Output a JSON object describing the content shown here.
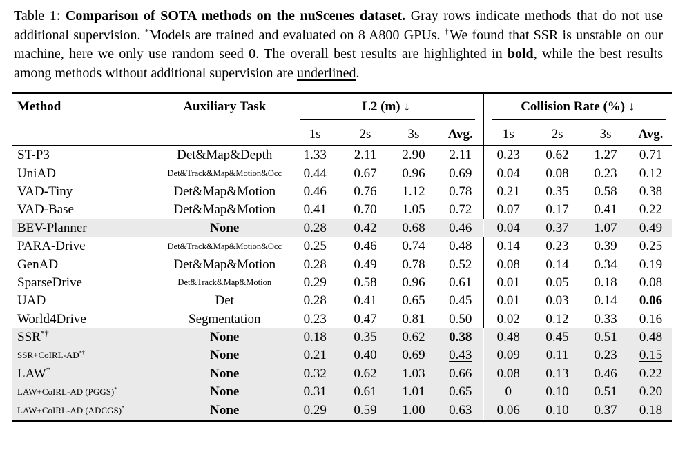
{
  "caption": {
    "segments": [
      {
        "t": "Table 1: "
      },
      {
        "t": "Comparison of SOTA methods on the nuScenes dataset.",
        "b": true
      },
      {
        "t": " Gray rows indicate methods that do not use additional supervision. "
      },
      {
        "t": "*",
        "sup": true
      },
      {
        "t": "Models are trained and evaluated on 8 A800 GPUs. "
      },
      {
        "t": "†",
        "sup": true
      },
      {
        "t": "We found that SSR is unstable on our machine, here we only use random seed 0. The overall best results are highlighted in "
      },
      {
        "t": "bold",
        "b": true
      },
      {
        "t": ", while the best results among methods without additional supervision are "
      },
      {
        "t": "underlined",
        "u": true
      },
      {
        "t": "."
      }
    ]
  },
  "table": {
    "headers": {
      "method": "Method",
      "aux": "Auxiliary Task",
      "group1_label": "L2 (m)",
      "group2_label": "Collision Rate (%)",
      "arrow": "↓",
      "sub": [
        "1s",
        "2s",
        "3s",
        "Avg.",
        "1s",
        "2s",
        "3s",
        "Avg."
      ]
    },
    "rows": [
      {
        "method": "ST-P3",
        "sup": "",
        "small": false,
        "aux": "Det&Map&Depth",
        "aux_small": false,
        "aux_bold": false,
        "gray": false,
        "values": [
          "1.33",
          "2.11",
          "2.90",
          "2.11",
          "0.23",
          "0.62",
          "1.27",
          "0.71"
        ],
        "styles": [
          "",
          "",
          "",
          "",
          "",
          "",
          "",
          ""
        ]
      },
      {
        "method": "UniAD",
        "sup": "",
        "small": false,
        "aux": "Det&Track&Map&Motion&Occ",
        "aux_small": true,
        "aux_bold": false,
        "gray": false,
        "values": [
          "0.44",
          "0.67",
          "0.96",
          "0.69",
          "0.04",
          "0.08",
          "0.23",
          "0.12"
        ],
        "styles": [
          "",
          "",
          "",
          "",
          "",
          "",
          "",
          ""
        ]
      },
      {
        "method": "VAD-Tiny",
        "sup": "",
        "small": false,
        "aux": "Det&Map&Motion",
        "aux_small": false,
        "aux_bold": false,
        "gray": false,
        "values": [
          "0.46",
          "0.76",
          "1.12",
          "0.78",
          "0.21",
          "0.35",
          "0.58",
          "0.38"
        ],
        "styles": [
          "",
          "",
          "",
          "",
          "",
          "",
          "",
          ""
        ]
      },
      {
        "method": "VAD-Base",
        "sup": "",
        "small": false,
        "aux": "Det&Map&Motion",
        "aux_small": false,
        "aux_bold": false,
        "gray": false,
        "values": [
          "0.41",
          "0.70",
          "1.05",
          "0.72",
          "0.07",
          "0.17",
          "0.41",
          "0.22"
        ],
        "styles": [
          "",
          "",
          "",
          "",
          "",
          "",
          "",
          ""
        ]
      },
      {
        "method": "BEV-Planner",
        "sup": "",
        "small": false,
        "aux": "None",
        "aux_small": false,
        "aux_bold": true,
        "gray": true,
        "values": [
          "0.28",
          "0.42",
          "0.68",
          "0.46",
          "0.04",
          "0.37",
          "1.07",
          "0.49"
        ],
        "styles": [
          "",
          "",
          "",
          "",
          "",
          "",
          "",
          ""
        ]
      },
      {
        "method": "PARA-Drive",
        "sup": "",
        "small": false,
        "aux": "Det&Track&Map&Motion&Occ",
        "aux_small": true,
        "aux_bold": false,
        "gray": false,
        "values": [
          "0.25",
          "0.46",
          "0.74",
          "0.48",
          "0.14",
          "0.23",
          "0.39",
          "0.25"
        ],
        "styles": [
          "",
          "",
          "",
          "",
          "",
          "",
          "",
          ""
        ]
      },
      {
        "method": "GenAD",
        "sup": "",
        "small": false,
        "aux": "Det&Map&Motion",
        "aux_small": false,
        "aux_bold": false,
        "gray": false,
        "values": [
          "0.28",
          "0.49",
          "0.78",
          "0.52",
          "0.08",
          "0.14",
          "0.34",
          "0.19"
        ],
        "styles": [
          "",
          "",
          "",
          "",
          "",
          "",
          "",
          ""
        ]
      },
      {
        "method": "SparseDrive",
        "sup": "",
        "small": false,
        "aux": "Det&Track&Map&Motion",
        "aux_small": true,
        "aux_bold": false,
        "gray": false,
        "values": [
          "0.29",
          "0.58",
          "0.96",
          "0.61",
          "0.01",
          "0.05",
          "0.18",
          "0.08"
        ],
        "styles": [
          "",
          "",
          "",
          "",
          "",
          "",
          "",
          ""
        ]
      },
      {
        "method": "UAD",
        "sup": "",
        "small": false,
        "aux": "Det",
        "aux_small": false,
        "aux_bold": false,
        "gray": false,
        "values": [
          "0.28",
          "0.41",
          "0.65",
          "0.45",
          "0.01",
          "0.03",
          "0.14",
          "0.06"
        ],
        "styles": [
          "",
          "",
          "",
          "",
          "",
          "",
          "",
          "b"
        ]
      },
      {
        "method": "World4Drive",
        "sup": "",
        "small": false,
        "aux": "Segmentation",
        "aux_small": false,
        "aux_bold": false,
        "gray": false,
        "values": [
          "0.23",
          "0.47",
          "0.81",
          "0.50",
          "0.02",
          "0.12",
          "0.33",
          "0.16"
        ],
        "styles": [
          "",
          "",
          "",
          "",
          "",
          "",
          "",
          ""
        ]
      },
      {
        "method": "SSR",
        "sup": "*†",
        "small": false,
        "aux": "None",
        "aux_small": false,
        "aux_bold": true,
        "gray": true,
        "values": [
          "0.18",
          "0.35",
          "0.62",
          "0.38",
          "0.48",
          "0.45",
          "0.51",
          "0.48"
        ],
        "styles": [
          "",
          "",
          "",
          "b",
          "",
          "",
          "",
          ""
        ]
      },
      {
        "method": "SSR+CoIRL-AD",
        "sup": "*†",
        "small": true,
        "aux": "None",
        "aux_small": false,
        "aux_bold": true,
        "gray": true,
        "values": [
          "0.21",
          "0.40",
          "0.69",
          "0.43",
          "0.09",
          "0.11",
          "0.23",
          "0.15"
        ],
        "styles": [
          "",
          "",
          "",
          "u",
          "",
          "",
          "",
          "u"
        ]
      },
      {
        "method": "LAW",
        "sup": "*",
        "small": false,
        "aux": "None",
        "aux_small": false,
        "aux_bold": true,
        "gray": true,
        "values": [
          "0.32",
          "0.62",
          "1.03",
          "0.66",
          "0.08",
          "0.13",
          "0.46",
          "0.22"
        ],
        "styles": [
          "",
          "",
          "",
          "",
          "",
          "",
          "",
          ""
        ]
      },
      {
        "method": "LAW+CoIRL-AD (PGGS)",
        "sup": "*",
        "small": true,
        "aux": "None",
        "aux_small": false,
        "aux_bold": true,
        "gray": true,
        "values": [
          "0.31",
          "0.61",
          "1.01",
          "0.65",
          "0",
          "0.10",
          "0.51",
          "0.20"
        ],
        "styles": [
          "",
          "",
          "",
          "",
          "",
          "",
          "",
          ""
        ]
      },
      {
        "method": "LAW+CoIRL-AD (ADCGS)",
        "sup": "*",
        "small": true,
        "aux": "None",
        "aux_small": false,
        "aux_bold": true,
        "gray": true,
        "values": [
          "0.29",
          "0.59",
          "1.00",
          "0.63",
          "0.06",
          "0.10",
          "0.37",
          "0.18"
        ],
        "styles": [
          "",
          "",
          "",
          "",
          "",
          "",
          "",
          ""
        ]
      }
    ]
  },
  "colors": {
    "gray_row": "#eaeaea",
    "rule": "#000000",
    "text": "#000000",
    "background": "#ffffff"
  }
}
